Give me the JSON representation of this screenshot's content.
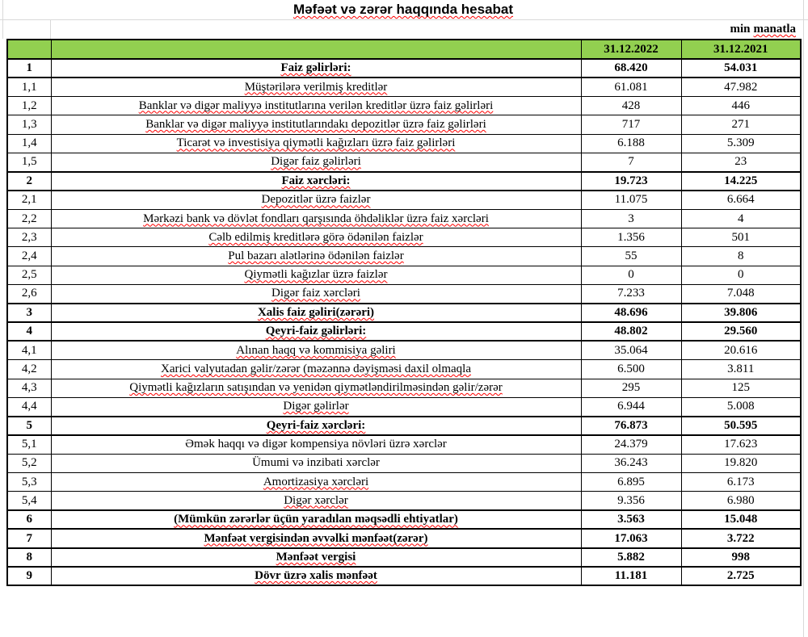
{
  "title": "Məfəət və zərər haqqında hesabat",
  "unit_note": {
    "plain": "min",
    "misspelled": "manatla"
  },
  "columns": [
    "31.12.2022",
    "31.12.2021"
  ],
  "colors": {
    "header_green": "#92D050",
    "squiggle_red": "#ff0000",
    "border_black": "#000000",
    "gridline_gray": "#d9d9d9"
  },
  "rows": [
    {
      "no": "1",
      "label": "Faiz gəlirləri:",
      "v2022": "68.420",
      "v2021": "54.031",
      "bold": true,
      "spell": true
    },
    {
      "no": "1,1",
      "label": "Müştərilərə verilmiş kreditlər",
      "v2022": "61.081",
      "v2021": "47.982",
      "bold": false,
      "spell": true
    },
    {
      "no": "1,2",
      "label": "Banklar və digər maliyyə institutlarına verilən kreditlər üzrə faiz gəlirləri",
      "v2022": "428",
      "v2021": "446",
      "bold": false,
      "spell": true
    },
    {
      "no": "1,3",
      "label": "Banklar və digər maliyyə institutlarındakı depozitlər üzrə faiz gəlirləri",
      "v2022": "717",
      "v2021": "271",
      "bold": false,
      "spell": true
    },
    {
      "no": "1,4",
      "label": "Ticarət və investisiya qiymətli kağızları üzrə faiz gəlirləri",
      "v2022": "6.188",
      "v2021": "5.309",
      "bold": false,
      "spell": true
    },
    {
      "no": "1,5",
      "label": "Digər faiz gəlirləri",
      "v2022": "7",
      "v2021": "23",
      "bold": false,
      "spell": true
    },
    {
      "no": "2",
      "label": "Faiz xərcləri:",
      "v2022": "19.723",
      "v2021": "14.225",
      "bold": true,
      "spell": true
    },
    {
      "no": "2,1",
      "label": "Depozitlər üzrə faizlər",
      "v2022": "11.075",
      "v2021": "6.664",
      "bold": false,
      "spell": true
    },
    {
      "no": "2,2",
      "label": "Mərkəzi bank və dövlət fondları qarşısında öhdəliklər üzrə faiz xərcləri",
      "v2022": "3",
      "v2021": "4",
      "bold": false,
      "spell": true
    },
    {
      "no": "2,3",
      "label": "Cəlb edilmiş kreditlərə görə ödənilən faizlər",
      "v2022": "1.356",
      "v2021": "501",
      "bold": false,
      "spell": true
    },
    {
      "no": "2,4",
      "label": "Pul bazarı alətlərinə ödənilən faizlər",
      "v2022": "55",
      "v2021": "8",
      "bold": false,
      "spell": true
    },
    {
      "no": "2,5",
      "label": "Qiymətli kağızlar üzrə faizlər",
      "v2022": "0",
      "v2021": "0",
      "bold": false,
      "spell": true
    },
    {
      "no": "2,6",
      "label": "Digər faiz xərcləri",
      "v2022": "7.233",
      "v2021": "7.048",
      "bold": false,
      "spell": true
    },
    {
      "no": "3",
      "label": "Xalis faiz gəliri(zərəri)",
      "v2022": "48.696",
      "v2021": "39.806",
      "bold": true,
      "spell": true
    },
    {
      "no": "4",
      "label": "Qeyri-faiz gəlirləri:",
      "v2022": "48.802",
      "v2021": "29.560",
      "bold": true,
      "spell": true
    },
    {
      "no": "4,1",
      "label": "Alınan haqq və kommisiya gəliri",
      "v2022": "35.064",
      "v2021": "20.616",
      "bold": false,
      "spell": true
    },
    {
      "no": "4,2",
      "label": "Xarici valyutadan gəlir/zərər (məzənnə dəyişməsi daxil olmaqla",
      "v2022": "6.500",
      "v2021": "3.811",
      "bold": false,
      "spell": true
    },
    {
      "no": "4,3",
      "label": "Qiymətli kağızların satışından və yenidən qiymətləndirilməsindən gəlir/zərər",
      "v2022": "295",
      "v2021": "125",
      "bold": false,
      "spell": true
    },
    {
      "no": "4,4",
      "label": "Digər gəlirlər",
      "v2022": "6.944",
      "v2021": "5.008",
      "bold": false,
      "spell": true
    },
    {
      "no": "5",
      "label": "Qeyri-faiz xərcləri:",
      "v2022": "76.873",
      "v2021": "50.595",
      "bold": true,
      "spell": true
    },
    {
      "no": "5,1",
      "label": "Əmək haqqı və digər kompensiya növləri üzrə xərclər",
      "v2022": "24.379",
      "v2021": "17.623",
      "bold": false,
      "spell": false
    },
    {
      "no": "5,2",
      "label": "Ümumi və inzibati xərclər",
      "v2022": "36.243",
      "v2021": "19.820",
      "bold": false,
      "spell": false
    },
    {
      "no": "5,3",
      "label": "Amortizasiya xərcləri",
      "v2022": "6.895",
      "v2021": "6.173",
      "bold": false,
      "spell": true
    },
    {
      "no": "5,4",
      "label": "Digər xərclər",
      "v2022": "9.356",
      "v2021": "6.980",
      "bold": false,
      "spell": true
    },
    {
      "no": "6",
      "label": "(Mümkün zərərlər üçün yaradılan məqsədli ehtiyatlar)",
      "v2022": "3.563",
      "v2021": "15.048",
      "bold": true,
      "spell": true
    },
    {
      "no": "7",
      "label": "Mənfəət vergisindən əvvəlki mənfəət(zərər)",
      "v2022": "17.063",
      "v2021": "3.722",
      "bold": true,
      "spell": true
    },
    {
      "no": "8",
      "label": "Mənfəət vergisi",
      "v2022": "5.882",
      "v2021": "998",
      "bold": true,
      "spell": true
    },
    {
      "no": "9",
      "label": "Dövr üzrə xalis mənfəət",
      "v2022": "11.181",
      "v2021": "2.725",
      "bold": true,
      "spell": true
    }
  ]
}
